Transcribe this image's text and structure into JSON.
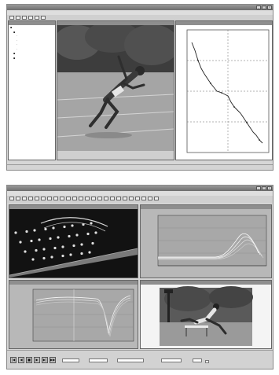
{
  "window1": {
    "title": "",
    "menu": [
      "",
      "",
      "",
      "",
      "",
      "",
      "",
      ""
    ],
    "project_tree": {
      "title": "",
      "items": [
        {
          "label": ""
        },
        {
          "label": ""
        },
        {
          "label": ""
        },
        {
          "label": ""
        },
        {
          "label": ""
        },
        {
          "label": ""
        },
        {
          "label": ""
        },
        {
          "label": ""
        }
      ]
    },
    "video_panel": {
      "title": "",
      "caption": ""
    },
    "graph_panel": {
      "title": ""
    },
    "status": {
      "left": "",
      "right": ""
    }
  },
  "window2": {
    "title": "",
    "menu": [
      "",
      "",
      "",
      "",
      "",
      "",
      ""
    ],
    "panels": {
      "skeleton": {
        "title": ""
      },
      "graph_top": {
        "title": ""
      },
      "graph_bottom": {
        "title": ""
      },
      "video": {
        "title": ""
      }
    },
    "playback_buttons": [
      "first-frame",
      "step-back",
      "stop",
      "play",
      "step-forward",
      "last-frame"
    ],
    "fields": [
      {
        "label": ""
      },
      {
        "label": ""
      },
      {
        "label": ""
      },
      {
        "label": ""
      }
    ]
  },
  "colors": {
    "chrome": "#d6d6d6",
    "titlebar": "#7a7a7a",
    "graph_bg": "#b8b8b8",
    "skeleton_bg": "#121212",
    "track": "#9c2c2c"
  },
  "icons": [
    "minimize-icon",
    "maximize-icon",
    "close-icon",
    "toolbar-icon",
    "folder-icon",
    "play-icon"
  ]
}
